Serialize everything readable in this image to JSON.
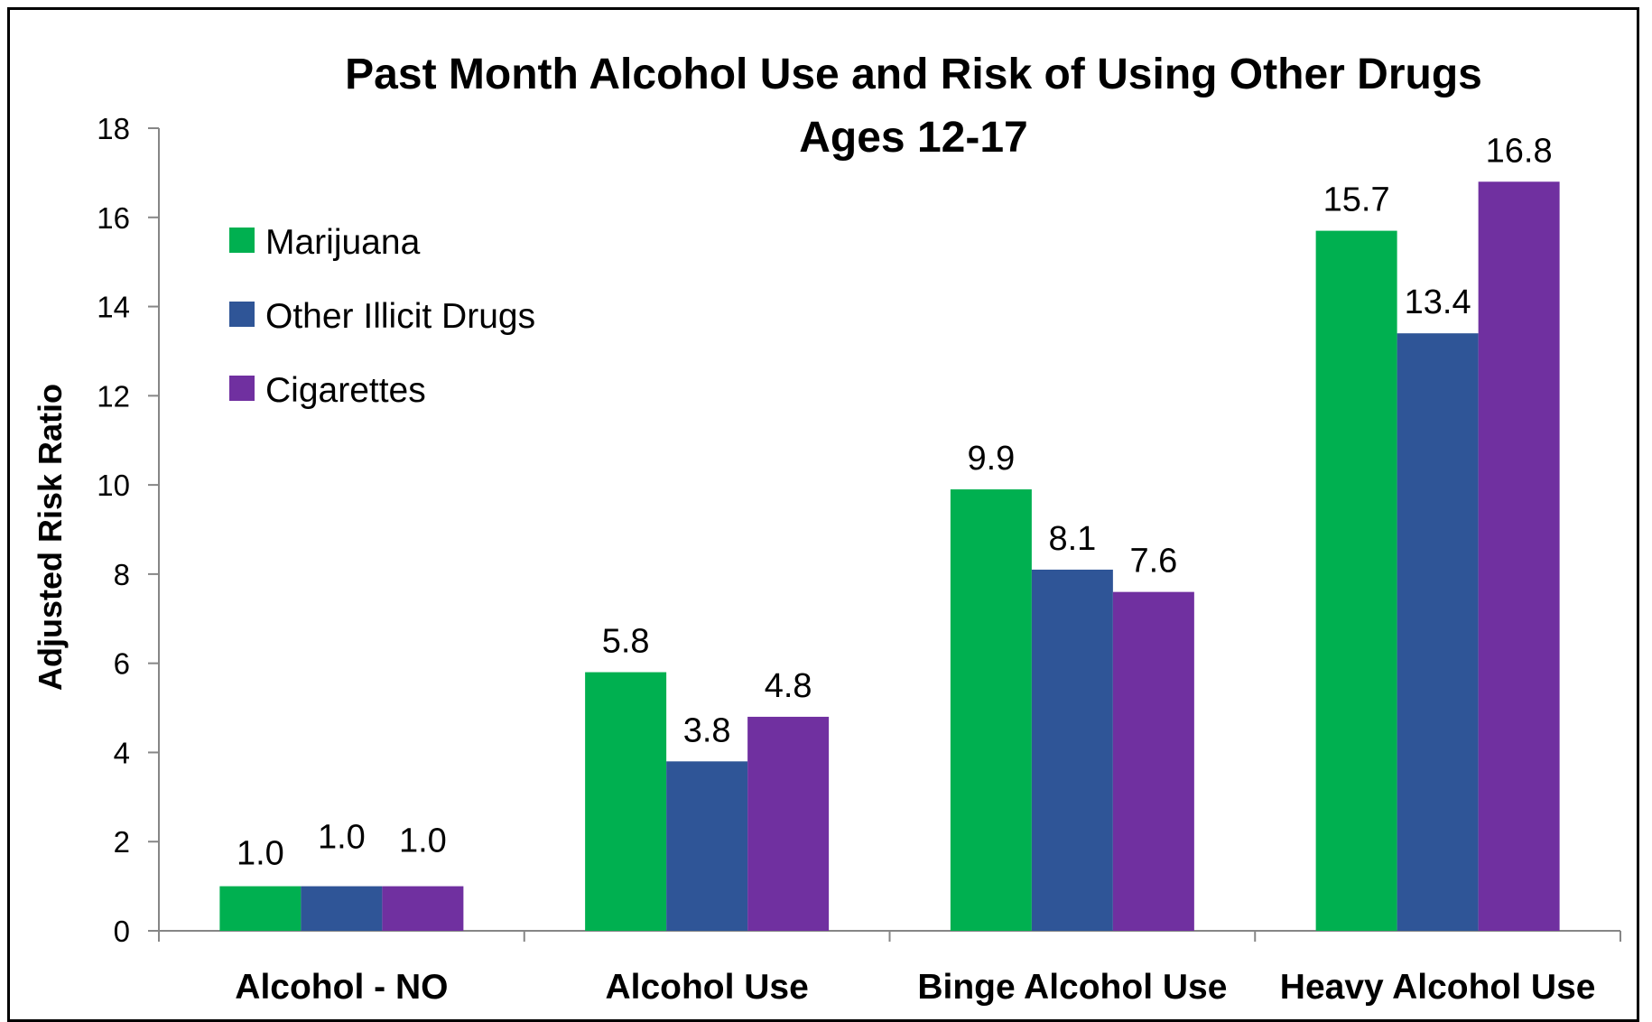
{
  "chart_data": {
    "type": "bar",
    "title": "Past Month Alcohol Use and Risk of Using Other Drugs",
    "subtitle": "Ages 12-17",
    "xlabel": "",
    "ylabel": "Adjusted Risk Ratio",
    "ylim": [
      0,
      18
    ],
    "yticks": [
      0,
      2,
      4,
      6,
      8,
      10,
      12,
      14,
      16,
      18
    ],
    "grid": false,
    "legend_position": "top-left",
    "categories": [
      "Alcohol - NO",
      "Alcohol Use",
      "Binge Alcohol Use",
      "Heavy Alcohol Use"
    ],
    "series": [
      {
        "name": "Marijuana",
        "color": "#00B050",
        "values": [
          1.0,
          5.8,
          9.9,
          15.7
        ],
        "labels": [
          "1.0",
          "5.8",
          "9.9",
          "15.7"
        ]
      },
      {
        "name": "Other Illicit Drugs",
        "color": "#2F5597",
        "values": [
          1.0,
          3.8,
          8.1,
          13.4
        ],
        "labels": [
          "1.0",
          "3.8",
          "8.1",
          "13.4"
        ]
      },
      {
        "name": "Cigarettes",
        "color": "#7030A0",
        "values": [
          1.0,
          4.8,
          7.6,
          16.8
        ],
        "labels": [
          "1.0",
          "4.8",
          "7.6",
          "16.8"
        ]
      }
    ]
  }
}
